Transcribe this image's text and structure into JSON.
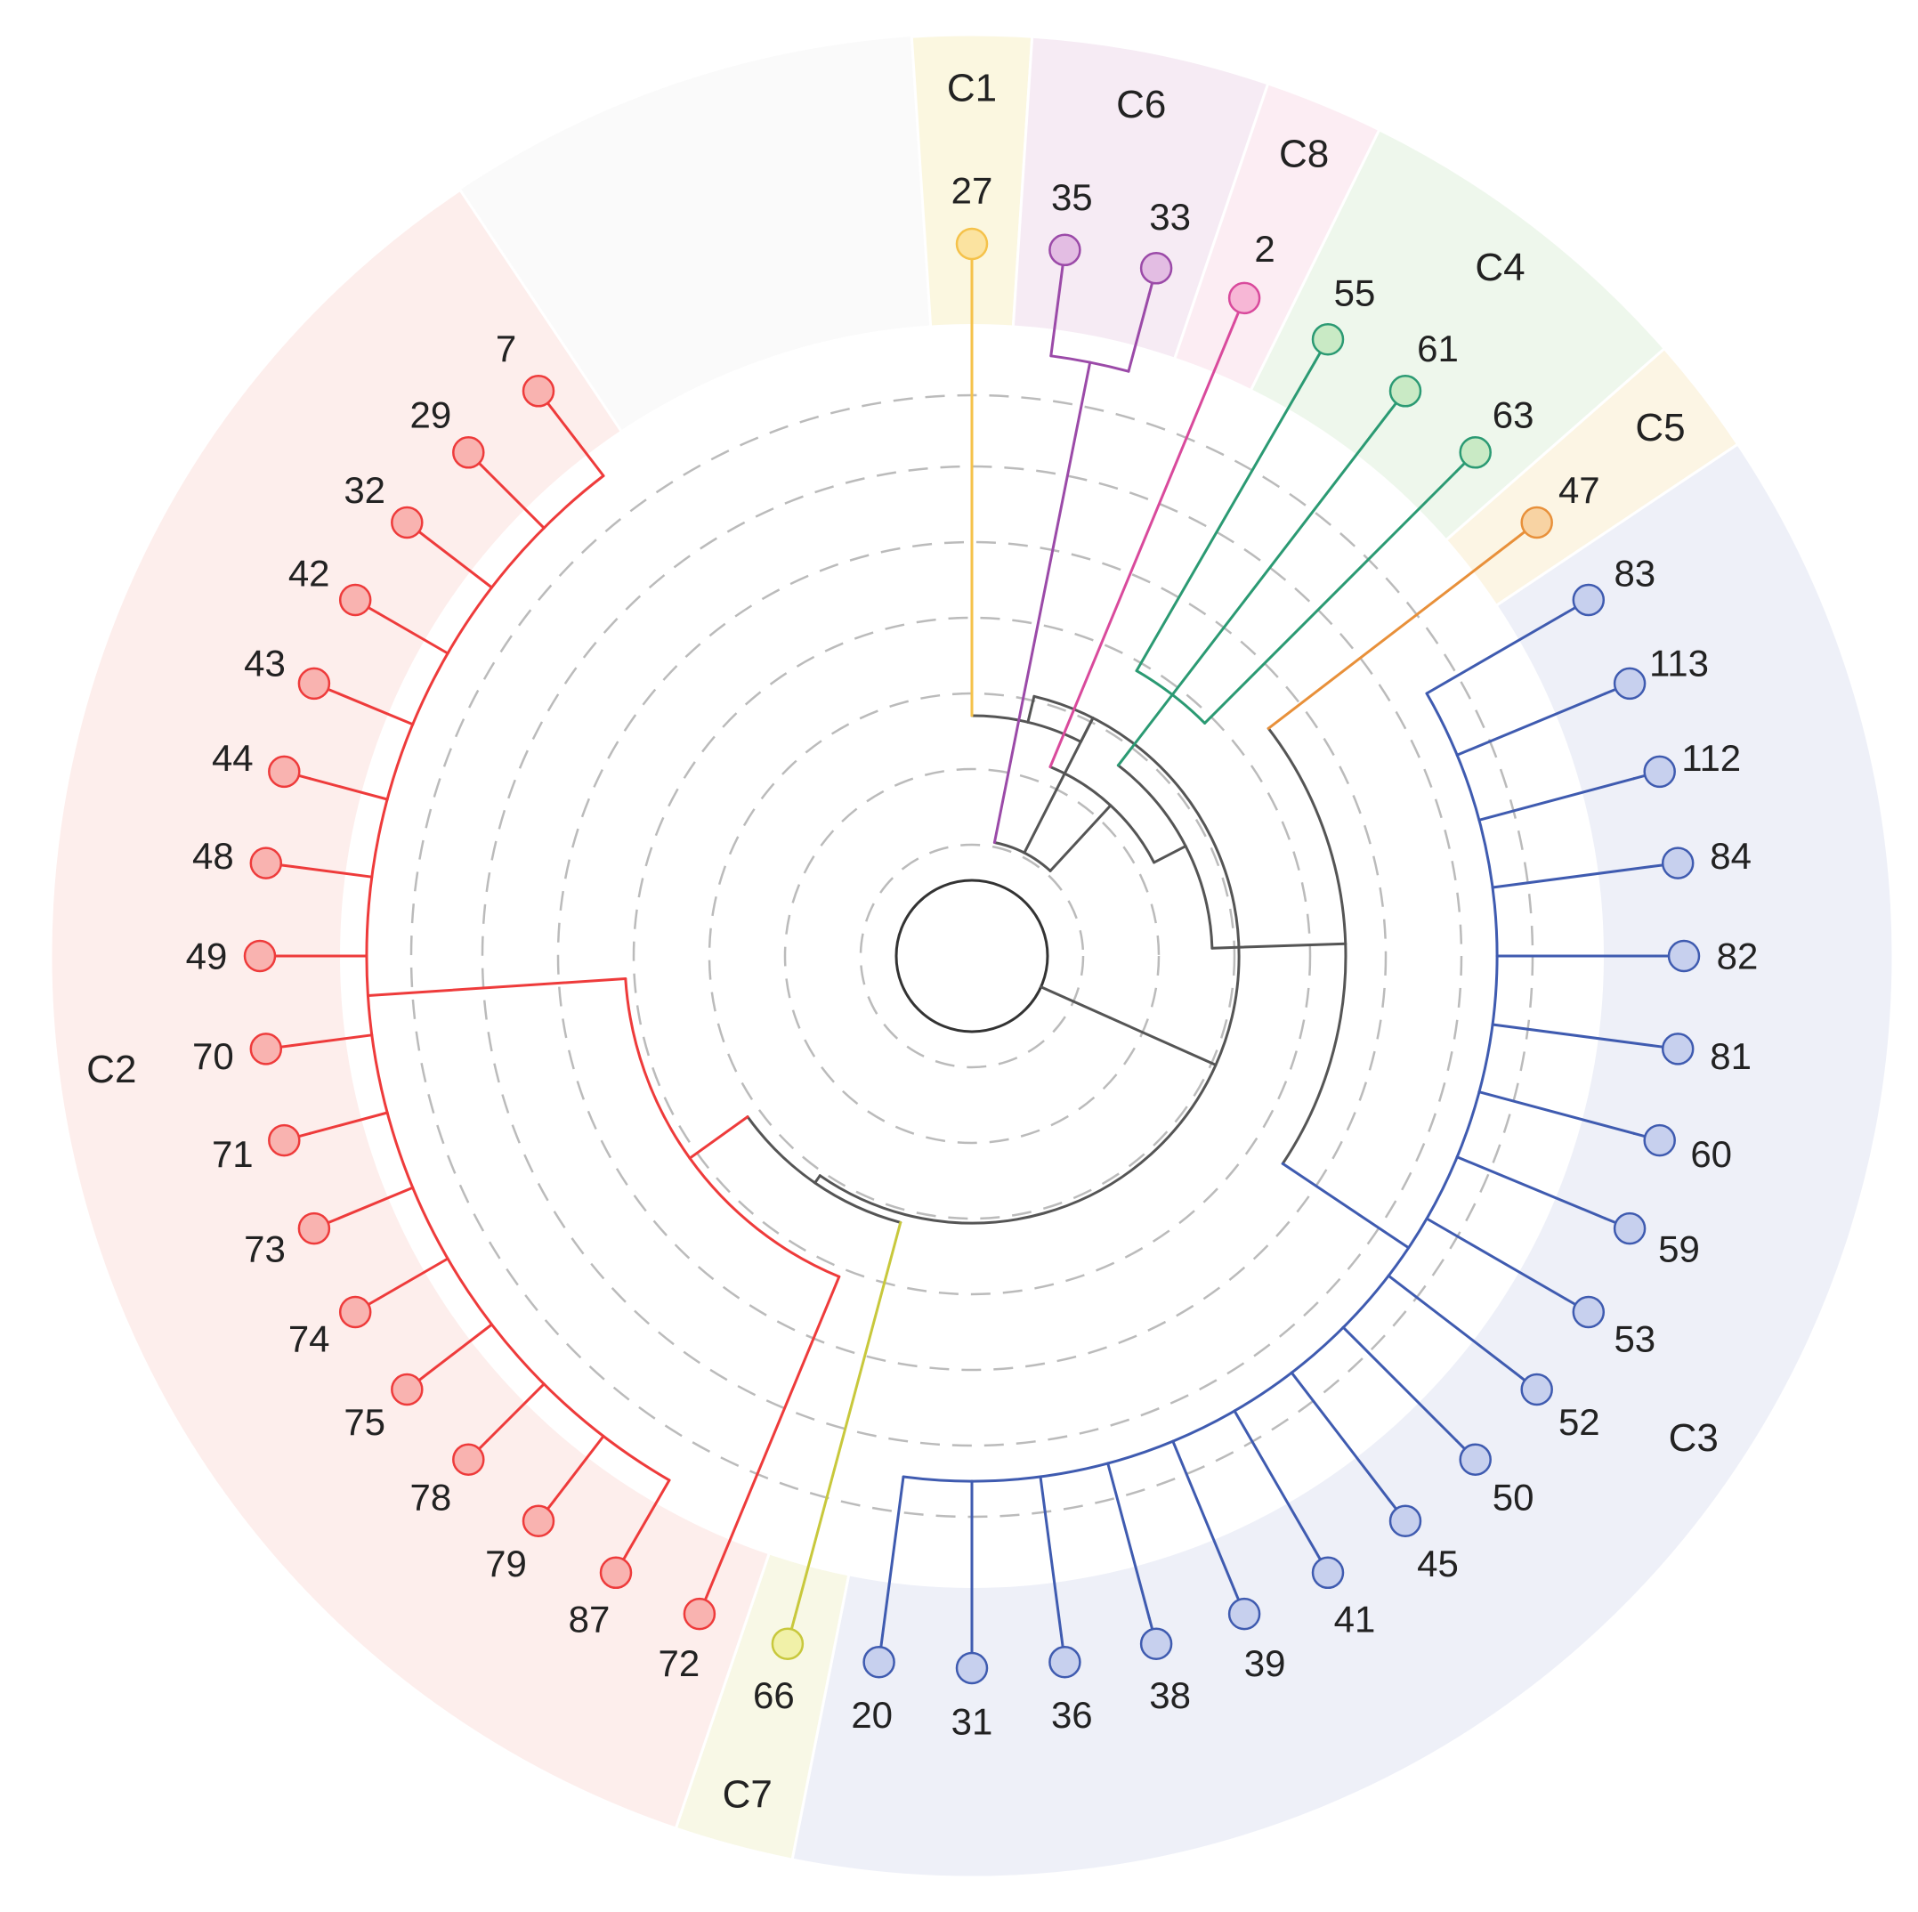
{
  "colors": {
    "background": "#fafafa",
    "internal": "#555555",
    "C1": "#f5c24a",
    "C2": "#ee3b3b",
    "C3": "#3f5bb0",
    "C4": "#2b9a73",
    "C5": "#e8903a",
    "C6": "#9b4aa8",
    "C7": "#c8c83c",
    "C8": "#d94a9c"
  },
  "sector_fills": {
    "C1": "#fbf7e0",
    "C2": "#fdeeec",
    "C3": "#eef0f8",
    "C4": "#eef7ec",
    "C5": "#fcf5e4",
    "C6": "#f6ebf4",
    "C7": "#f8f8e6",
    "C8": "#fcedf3"
  },
  "node_fills": {
    "C1": "#fbe3a0",
    "C2": "#f9b3b0",
    "C3": "#c7d0ee",
    "C4": "#c9eac5",
    "C5": "#f8d3a3",
    "C6": "#e3bde3",
    "C7": "#f1f1a8",
    "C8": "#f7b7d6"
  },
  "clusters": [
    {
      "id": "C1",
      "label": "C1",
      "leaves": [
        "27"
      ]
    },
    {
      "id": "C6",
      "label": "C6",
      "leaves": [
        "35",
        "33"
      ]
    },
    {
      "id": "C8",
      "label": "C8",
      "leaves": [
        "2"
      ]
    },
    {
      "id": "C4",
      "label": "C4",
      "leaves": [
        "55",
        "61",
        "63"
      ]
    },
    {
      "id": "C5",
      "label": "C5",
      "leaves": [
        "47"
      ]
    },
    {
      "id": "C3",
      "label": "C3",
      "leaves": [
        "83",
        "113",
        "112",
        "84",
        "82",
        "81",
        "60",
        "59",
        "53",
        "52",
        "50",
        "45",
        "41",
        "39",
        "38",
        "36",
        "31",
        "20"
      ]
    },
    {
      "id": "C7",
      "label": "C7",
      "leaves": [
        "66"
      ]
    },
    {
      "id": "C2",
      "label": "C2",
      "leaves": [
        "72",
        "87",
        "79",
        "78",
        "75",
        "74",
        "73",
        "71",
        "70",
        "49",
        "48",
        "44",
        "43",
        "42",
        "32",
        "29",
        "7"
      ]
    }
  ]
}
